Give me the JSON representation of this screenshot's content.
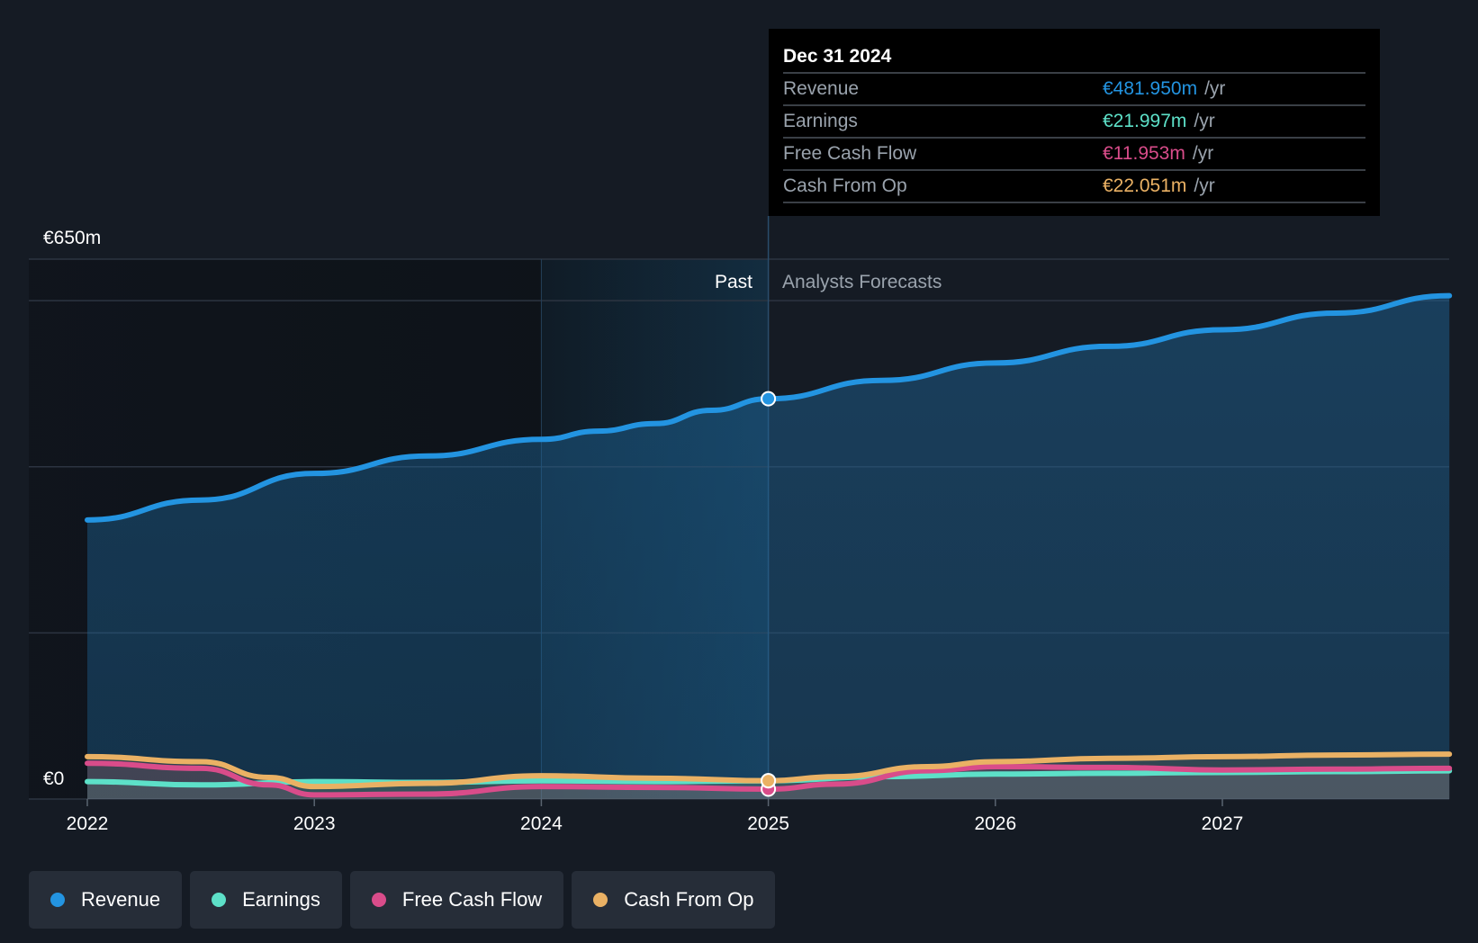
{
  "chart_data": {
    "type": "line",
    "x_ticks": [
      "2022",
      "2023",
      "2024",
      "2025",
      "2026",
      "2027"
    ],
    "y_axis": {
      "top_label": "€650m",
      "bottom_label": "€0",
      "ylim": [
        0,
        650
      ]
    },
    "regions": {
      "past_label": "Past",
      "forecast_label": "Analysts Forecasts",
      "divider_x": 2025.0
    },
    "series": [
      {
        "name": "Revenue",
        "color": "#2394e1",
        "area": true,
        "points": [
          [
            2022.0,
            336
          ],
          [
            2022.5,
            360
          ],
          [
            2023.0,
            392
          ],
          [
            2023.5,
            413
          ],
          [
            2024.0,
            433
          ],
          [
            2024.25,
            443
          ],
          [
            2024.5,
            452
          ],
          [
            2024.75,
            468
          ],
          [
            2025.0,
            481.95
          ],
          [
            2025.5,
            504
          ],
          [
            2026.0,
            525
          ],
          [
            2026.5,
            545
          ],
          [
            2027.0,
            565
          ],
          [
            2027.5,
            585
          ],
          [
            2028.0,
            606
          ]
        ]
      },
      {
        "name": "Earnings",
        "color": "#5de0c8",
        "points": [
          [
            2022.0,
            21
          ],
          [
            2022.5,
            17
          ],
          [
            2023.0,
            21
          ],
          [
            2023.5,
            20
          ],
          [
            2024.0,
            22
          ],
          [
            2024.5,
            21
          ],
          [
            2025.0,
            22.0
          ],
          [
            2025.5,
            27
          ],
          [
            2026.0,
            30
          ],
          [
            2026.5,
            31
          ],
          [
            2027.0,
            32
          ],
          [
            2027.5,
            33
          ],
          [
            2028.0,
            34
          ]
        ]
      },
      {
        "name": "Free Cash Flow",
        "color": "#d94c8a",
        "points": [
          [
            2022.0,
            43
          ],
          [
            2022.5,
            37
          ],
          [
            2022.8,
            17
          ],
          [
            2023.0,
            5
          ],
          [
            2023.5,
            6
          ],
          [
            2024.0,
            15
          ],
          [
            2024.5,
            14
          ],
          [
            2025.0,
            11.95
          ],
          [
            2025.3,
            18
          ],
          [
            2025.7,
            34
          ],
          [
            2026.0,
            39
          ],
          [
            2026.5,
            38
          ],
          [
            2027.0,
            35
          ],
          [
            2027.5,
            36
          ],
          [
            2028.0,
            37
          ]
        ]
      },
      {
        "name": "Cash From Op",
        "color": "#eab164",
        "points": [
          [
            2022.0,
            51
          ],
          [
            2022.5,
            45
          ],
          [
            2022.8,
            26
          ],
          [
            2023.0,
            15
          ],
          [
            2023.5,
            19
          ],
          [
            2024.0,
            28
          ],
          [
            2024.5,
            25
          ],
          [
            2025.0,
            22.05
          ],
          [
            2025.3,
            27
          ],
          [
            2025.7,
            39
          ],
          [
            2026.0,
            45
          ],
          [
            2026.5,
            49
          ],
          [
            2027.0,
            51
          ],
          [
            2027.5,
            53
          ],
          [
            2028.0,
            54
          ]
        ]
      }
    ],
    "highlight_x": 2025.0,
    "grid": true,
    "legend_position": "bottom-left"
  },
  "tooltip": {
    "date": "Dec 31 2024",
    "rows": [
      {
        "name": "Revenue",
        "value": "€481.950m",
        "unit": "/yr",
        "color": "#2394e1"
      },
      {
        "name": "Earnings",
        "value": "€21.997m",
        "unit": "/yr",
        "color": "#5de0c8"
      },
      {
        "name": "Free Cash Flow",
        "value": "€11.953m",
        "unit": "/yr",
        "color": "#d94c8a"
      },
      {
        "name": "Cash From Op",
        "value": "€22.051m",
        "unit": "/yr",
        "color": "#eab164"
      }
    ]
  },
  "legend": [
    {
      "label": "Revenue",
      "color": "#2394e1"
    },
    {
      "label": "Earnings",
      "color": "#5de0c8"
    },
    {
      "label": "Free Cash Flow",
      "color": "#d94c8a"
    },
    {
      "label": "Cash From Op",
      "color": "#eab164"
    }
  ]
}
